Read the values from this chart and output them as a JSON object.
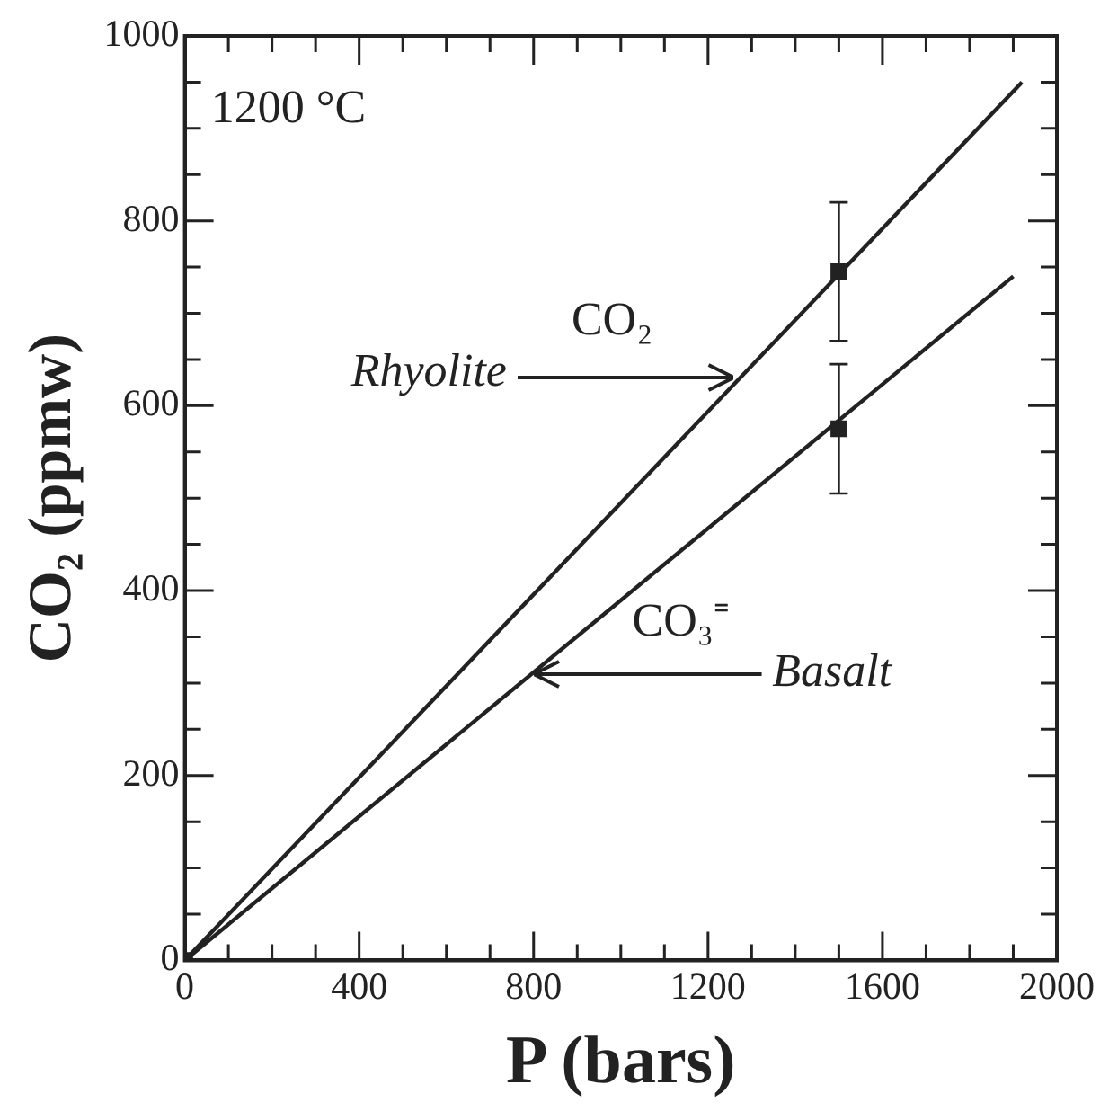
{
  "chart_data": {
    "type": "line",
    "xlabel": "P (bars)",
    "ylabel": "CO₂ (ppmw)",
    "xlim": [
      0,
      2000
    ],
    "ylim": [
      0,
      1000
    ],
    "xticks": [
      0,
      {
        "value": 100,
        "label": null
      },
      {
        "value": 200,
        "label": null
      },
      {
        "value": 300,
        "label": null
      },
      400,
      {
        "value": 500,
        "label": null
      },
      {
        "value": 600,
        "label": null
      },
      {
        "value": 700,
        "label": null
      },
      800,
      {
        "value": 900,
        "label": null
      },
      {
        "value": 1000,
        "label": null
      },
      {
        "value": 1100,
        "label": null
      },
      1200,
      {
        "value": 1300,
        "label": null
      },
      {
        "value": 1400,
        "label": null
      },
      {
        "value": 1500,
        "label": null
      },
      1600,
      {
        "value": 1700,
        "label": null
      },
      {
        "value": 1800,
        "label": null
      },
      {
        "value": 1900,
        "label": null
      },
      2000
    ],
    "yticks": [
      0,
      {
        "value": 50,
        "label": null
      },
      {
        "value": 100,
        "label": null
      },
      {
        "value": 150,
        "label": null
      },
      200,
      {
        "value": 250,
        "label": null
      },
      {
        "value": 300,
        "label": null
      },
      {
        "value": 350,
        "label": null
      },
      400,
      {
        "value": 450,
        "label": null
      },
      {
        "value": 500,
        "label": null
      },
      {
        "value": 550,
        "label": null
      },
      600,
      {
        "value": 650,
        "label": null
      },
      {
        "value": 700,
        "label": null
      },
      {
        "value": 750,
        "label": null
      },
      800,
      {
        "value": 850,
        "label": null
      },
      {
        "value": 900,
        "label": null
      },
      {
        "value": 950,
        "label": null
      },
      1000
    ],
    "grid": false,
    "legend": false,
    "series": [
      {
        "x": [
          0,
          1920
        ],
        "values": [
          0,
          950
        ],
        "color": "#222222",
        "marker": "none"
      },
      {
        "x": [
          0,
          1900
        ],
        "values": [
          0,
          740
        ],
        "color": "#222222",
        "marker": "none"
      },
      {
        "type": "scatter",
        "x": [
          0,
          1500,
          1500
        ],
        "values": [
          0,
          745,
          575
        ],
        "errors": [
          null,
          75,
          70
        ],
        "color": "#222222",
        "marker": "square"
      }
    ],
    "annotations": [
      "1200 °C",
      "Rhyolite",
      "CO₂",
      {
        "text": "CO₃⁼",
        "x": 800,
        "y": 310
      },
      {
        "text": "Basalt",
        "x": 800,
        "y": 310
      }
    ]
  }
}
